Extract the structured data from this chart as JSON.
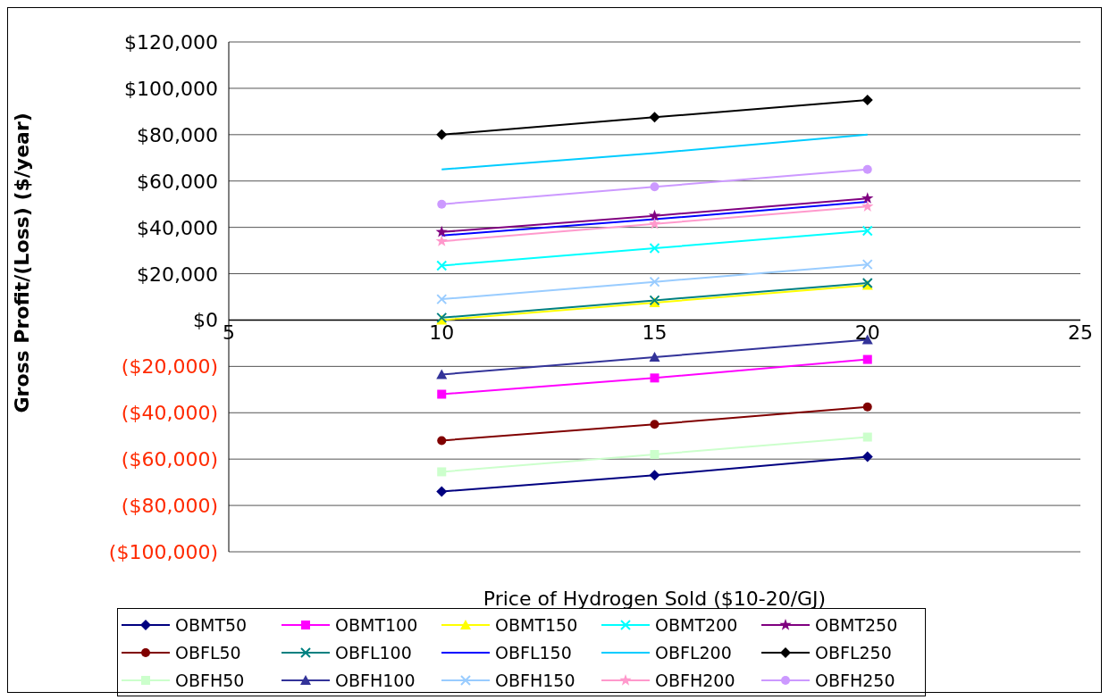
{
  "chart_data": {
    "type": "line",
    "xlabel": "Price of Hydrogen Sold ($10-20/GJ)",
    "ylabel": "Gross Profit/(Loss)  ($/year)",
    "x": [
      10,
      15,
      20
    ],
    "xlim": [
      5,
      25
    ],
    "xticks": [
      5,
      10,
      15,
      20,
      25
    ],
    "ylim": [
      -100000,
      120000
    ],
    "yticks": [
      {
        "value": -100000,
        "label": "($100,000)"
      },
      {
        "value": -80000,
        "label": "($80,000)"
      },
      {
        "value": -60000,
        "label": "($60,000)"
      },
      {
        "value": -40000,
        "label": "($40,000)"
      },
      {
        "value": -20000,
        "label": "($20,000)"
      },
      {
        "value": 0,
        "label": "$0"
      },
      {
        "value": 20000,
        "label": "$20,000"
      },
      {
        "value": 40000,
        "label": "$40,000"
      },
      {
        "value": 60000,
        "label": "$60,000"
      },
      {
        "value": 80000,
        "label": "$80,000"
      },
      {
        "value": 100000,
        "label": "$100,000"
      },
      {
        "value": 120000,
        "label": "$120,000"
      }
    ],
    "grid": "y",
    "legend": "bottom",
    "series": [
      {
        "name": "OBMT50",
        "color": "#000080",
        "marker": "diamond",
        "values": [
          -74000,
          -67000,
          -59000
        ]
      },
      {
        "name": "OBMT100",
        "color": "#ff00ff",
        "marker": "square",
        "values": [
          -32000,
          -25000,
          -17000
        ]
      },
      {
        "name": "OBMT150",
        "color": "#ffff00",
        "marker": "triangle",
        "values": [
          0,
          7500,
          15000
        ]
      },
      {
        "name": "OBMT200",
        "color": "#00ffff",
        "marker": "cross",
        "values": [
          23500,
          31000,
          38500
        ]
      },
      {
        "name": "OBMT250",
        "color": "#800080",
        "marker": "star",
        "values": [
          38000,
          45000,
          52500
        ]
      },
      {
        "name": "OBFL50",
        "color": "#800000",
        "marker": "circle",
        "values": [
          -52000,
          -45000,
          -37500
        ]
      },
      {
        "name": "OBFL100",
        "color": "#008080",
        "marker": "cross",
        "values": [
          1000,
          8500,
          16000
        ]
      },
      {
        "name": "OBFL150",
        "color": "#0000ff",
        "marker": "none",
        "values": [
          36500,
          43500,
          51000
        ]
      },
      {
        "name": "OBFL200",
        "color": "#00ccff",
        "marker": "none",
        "values": [
          65000,
          72000,
          80000
        ]
      },
      {
        "name": "OBFL250",
        "color": "#000000",
        "marker": "diamond",
        "values": [
          80000,
          87500,
          95000
        ]
      },
      {
        "name": "OBFH50",
        "color": "#ccffcc",
        "marker": "square",
        "values": [
          -65500,
          -58000,
          -50500
        ]
      },
      {
        "name": "OBFH100",
        "color": "#333399",
        "marker": "triangle",
        "values": [
          -23500,
          -16000,
          -8500
        ]
      },
      {
        "name": "OBFH150",
        "color": "#99ccff",
        "marker": "cross",
        "values": [
          9000,
          16500,
          24000
        ]
      },
      {
        "name": "OBFH200",
        "color": "#ff99cc",
        "marker": "star",
        "values": [
          34000,
          41500,
          49000
        ]
      },
      {
        "name": "OBFH250",
        "color": "#cc99ff",
        "marker": "circle",
        "values": [
          50000,
          57500,
          65000
        ]
      }
    ]
  }
}
